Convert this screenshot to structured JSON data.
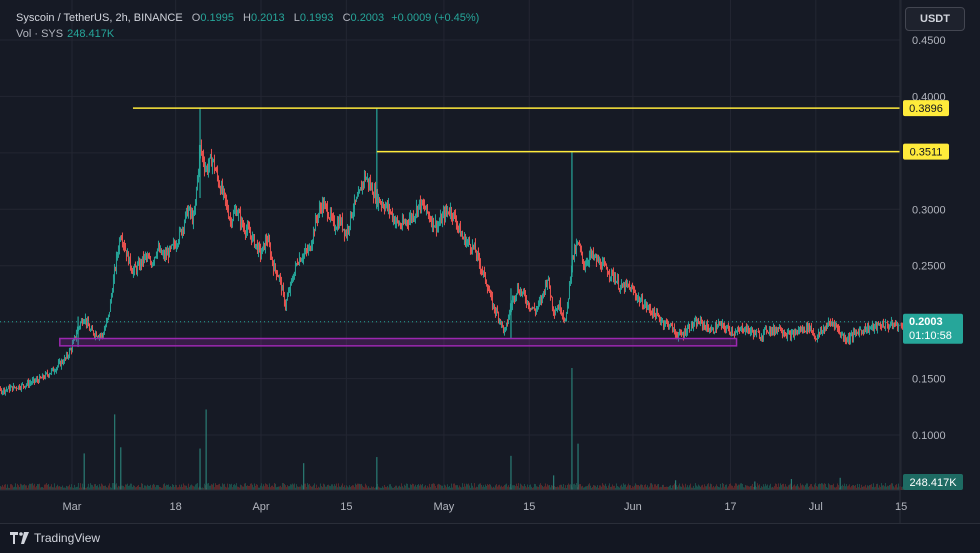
{
  "legend": {
    "symbol": "Syscoin / TetherUS, 2h, BINANCE",
    "o_label": "O",
    "o": "0.1995",
    "h_label": "H",
    "h": "0.2013",
    "l_label": "L",
    "l": "0.1993",
    "c_label": "C",
    "c": "0.2003",
    "change": "+0.0009 (+0.45%)",
    "vol_label": "Vol · SYS",
    "vol": "248.417K"
  },
  "currency_button": "USDT",
  "branding": "TradingView",
  "colors": {
    "up": "#26a69a",
    "down": "#ef5350",
    "level": "#ffeb3b",
    "zone": "#9c27b0",
    "price_tag": "#26a69a"
  },
  "chart_data": {
    "type": "candlestick",
    "y_ticks": [
      "0.4500",
      "0.4000",
      "0.3500",
      "0.3000",
      "0.2500",
      "0.2000",
      "0.1500",
      "0.1000"
    ],
    "x_ticks": [
      "Mar",
      "18",
      "Apr",
      "15",
      "May",
      "15",
      "Jun",
      "17",
      "Jul",
      "15"
    ],
    "ylim": [
      0.055,
      0.47
    ],
    "levels": [
      {
        "label": "0.3896",
        "value": 0.3896,
        "from": "Mar 11"
      },
      {
        "label": "0.3511",
        "value": 0.3511,
        "from": "Apr 20"
      }
    ],
    "support_zone": {
      "low": 0.179,
      "high": 0.1855,
      "from": "Feb 27",
      "to": "Jun 18"
    },
    "last_price": {
      "value": 0.2003,
      "label": "0.2003",
      "countdown": "01:10:58"
    },
    "last_volume": "248.417K",
    "price_path": [
      [
        -16,
        0.142
      ],
      [
        -12,
        0.139
      ],
      [
        -8,
        0.144
      ],
      [
        -5,
        0.15
      ],
      [
        -3,
        0.158
      ],
      [
        -1,
        0.168
      ],
      [
        0,
        0.178
      ],
      [
        1,
        0.195
      ],
      [
        2,
        0.205
      ],
      [
        3,
        0.192
      ],
      [
        5,
        0.188
      ],
      [
        6,
        0.205
      ],
      [
        7,
        0.245
      ],
      [
        8,
        0.28
      ],
      [
        9,
        0.26
      ],
      [
        10,
        0.245
      ],
      [
        11,
        0.25
      ],
      [
        12,
        0.258
      ],
      [
        13,
        0.252
      ],
      [
        14,
        0.265
      ],
      [
        15,
        0.258
      ],
      [
        16,
        0.262
      ],
      [
        17,
        0.27
      ],
      [
        18,
        0.282
      ],
      [
        19,
        0.3
      ],
      [
        20,
        0.29
      ],
      [
        21,
        0.355
      ],
      [
        22,
        0.335
      ],
      [
        23,
        0.345
      ],
      [
        24,
        0.325
      ],
      [
        25,
        0.31
      ],
      [
        26,
        0.29
      ],
      [
        27,
        0.3
      ],
      [
        28,
        0.285
      ],
      [
        29,
        0.28
      ],
      [
        30,
        0.27
      ],
      [
        31,
        0.26
      ],
      [
        32,
        0.275
      ],
      [
        33,
        0.25
      ],
      [
        34,
        0.24
      ],
      [
        35,
        0.215
      ],
      [
        36,
        0.235
      ],
      [
        37,
        0.255
      ],
      [
        38,
        0.26
      ],
      [
        39,
        0.265
      ],
      [
        40,
        0.29
      ],
      [
        41,
        0.305
      ],
      [
        42,
        0.298
      ],
      [
        43,
        0.285
      ],
      [
        44,
        0.29
      ],
      [
        45,
        0.278
      ],
      [
        46,
        0.3
      ],
      [
        47,
        0.31
      ],
      [
        48,
        0.33
      ],
      [
        49,
        0.32
      ],
      [
        50,
        0.31
      ],
      [
        51,
        0.305
      ],
      [
        52,
        0.3
      ],
      [
        53,
        0.29
      ],
      [
        54,
        0.285
      ],
      [
        55,
        0.29
      ],
      [
        56,
        0.295
      ],
      [
        57,
        0.305
      ],
      [
        58,
        0.3
      ],
      [
        59,
        0.29
      ],
      [
        60,
        0.285
      ],
      [
        61,
        0.295
      ],
      [
        62,
        0.3
      ],
      [
        63,
        0.29
      ],
      [
        64,
        0.275
      ],
      [
        65,
        0.27
      ],
      [
        66,
        0.265
      ],
      [
        67,
        0.25
      ],
      [
        68,
        0.235
      ],
      [
        69,
        0.215
      ],
      [
        70,
        0.205
      ],
      [
        71,
        0.19
      ],
      [
        72,
        0.215
      ],
      [
        73,
        0.23
      ],
      [
        74,
        0.225
      ],
      [
        75,
        0.215
      ],
      [
        76,
        0.21
      ],
      [
        77,
        0.22
      ],
      [
        78,
        0.24
      ],
      [
        79,
        0.21
      ],
      [
        80,
        0.215
      ],
      [
        81,
        0.2
      ],
      [
        82,
        0.255
      ],
      [
        83,
        0.27
      ],
      [
        84,
        0.25
      ],
      [
        85,
        0.26
      ],
      [
        86,
        0.255
      ],
      [
        87,
        0.25
      ],
      [
        88,
        0.245
      ],
      [
        89,
        0.24
      ],
      [
        90,
        0.23
      ],
      [
        91,
        0.232
      ],
      [
        92,
        0.228
      ],
      [
        93,
        0.22
      ],
      [
        94,
        0.215
      ],
      [
        95,
        0.21
      ],
      [
        96,
        0.205
      ],
      [
        97,
        0.2
      ],
      [
        98,
        0.198
      ],
      [
        99,
        0.19
      ],
      [
        100,
        0.188
      ],
      [
        101,
        0.195
      ],
      [
        102,
        0.198
      ],
      [
        103,
        0.2
      ],
      [
        104,
        0.196
      ],
      [
        105,
        0.192
      ],
      [
        106,
        0.198
      ],
      [
        107,
        0.195
      ],
      [
        108,
        0.193
      ],
      [
        109,
        0.19
      ],
      [
        110,
        0.195
      ],
      [
        111,
        0.193
      ],
      [
        112,
        0.19
      ],
      [
        113,
        0.188
      ],
      [
        114,
        0.194
      ],
      [
        115,
        0.192
      ],
      [
        116,
        0.196
      ],
      [
        117,
        0.19
      ],
      [
        118,
        0.188
      ],
      [
        119,
        0.192
      ],
      [
        120,
        0.194
      ],
      [
        121,
        0.196
      ],
      [
        122,
        0.186
      ],
      [
        123,
        0.192
      ],
      [
        124,
        0.198
      ],
      [
        125,
        0.2
      ],
      [
        126,
        0.19
      ],
      [
        127,
        0.185
      ],
      [
        128,
        0.188
      ],
      [
        129,
        0.192
      ],
      [
        130,
        0.194
      ],
      [
        131,
        0.195
      ],
      [
        132,
        0.196
      ],
      [
        133,
        0.198
      ],
      [
        134,
        0.197
      ],
      [
        135,
        0.198
      ],
      [
        136,
        0.196
      ],
      [
        137,
        0.199
      ],
      [
        138,
        0.2
      ],
      [
        139,
        0.198
      ],
      [
        140,
        0.197
      ],
      [
        141,
        0.2003
      ]
    ],
    "wicks": [
      {
        "day": 21,
        "high": 0.3896,
        "low": 0.31
      },
      {
        "day": 50,
        "high": 0.3896,
        "low": 0.3
      },
      {
        "day": 82,
        "high": 0.3511,
        "low": 0.24
      },
      {
        "day": 72,
        "high": 0.23,
        "low": 0.185
      },
      {
        "day": 1,
        "high": 0.205,
        "low": 0.178
      }
    ],
    "volume_spikes": [
      {
        "day": 2,
        "ratio": 0.3
      },
      {
        "day": 7,
        "ratio": 0.62
      },
      {
        "day": 8,
        "ratio": 0.35
      },
      {
        "day": 21,
        "ratio": 0.34
      },
      {
        "day": 22,
        "ratio": 0.66
      },
      {
        "day": 38,
        "ratio": 0.22
      },
      {
        "day": 50,
        "ratio": 0.27
      },
      {
        "day": 72,
        "ratio": 0.28
      },
      {
        "day": 79,
        "ratio": 0.12
      },
      {
        "day": 82,
        "ratio": 1.0
      },
      {
        "day": 83,
        "ratio": 0.38
      },
      {
        "day": 99,
        "ratio": 0.08
      },
      {
        "day": 112,
        "ratio": 0.07
      },
      {
        "day": 118,
        "ratio": 0.09
      },
      {
        "day": 126,
        "ratio": 0.1
      }
    ]
  }
}
